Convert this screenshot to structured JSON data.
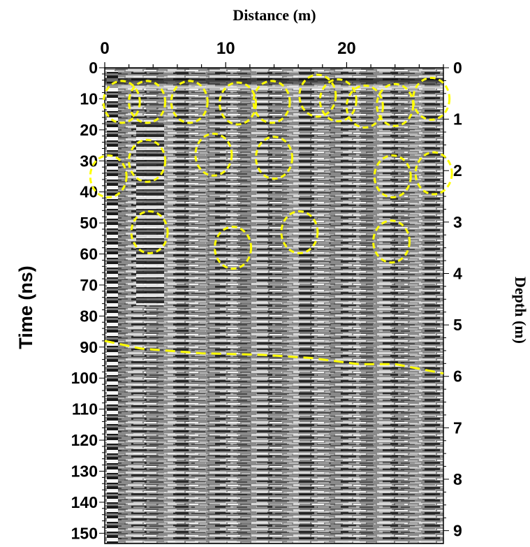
{
  "top_axis": {
    "title": "Distance (m)",
    "ticks": [
      {
        "label": "0",
        "value": 0
      },
      {
        "label": "10",
        "value": 10
      },
      {
        "label": "20",
        "value": 20
      }
    ],
    "range": [
      0,
      28
    ]
  },
  "left_axis": {
    "title": "Time (ns)",
    "range": [
      0,
      150
    ],
    "ticks": [
      "0",
      "10",
      "20",
      "30",
      "40",
      "50",
      "60",
      "70",
      "80",
      "90",
      "100",
      "110",
      "120",
      "130",
      "140",
      "150"
    ]
  },
  "right_axis": {
    "title": "Depth (m)",
    "range": [
      0,
      9.25
    ],
    "ticks": [
      "0",
      "1",
      "2",
      "3",
      "4",
      "5",
      "6",
      "7",
      "8",
      "9"
    ]
  },
  "annotation_color": "#ffff00",
  "hyperbola_markers": [
    {
      "distance_m": 1.4,
      "time_ns": 11
    },
    {
      "distance_m": 3.5,
      "time_ns": 11
    },
    {
      "distance_m": 7.0,
      "time_ns": 11
    },
    {
      "distance_m": 11.0,
      "time_ns": 11.5
    },
    {
      "distance_m": 13.8,
      "time_ns": 11
    },
    {
      "distance_m": 17.6,
      "time_ns": 9
    },
    {
      "distance_m": 19.3,
      "time_ns": 10.5
    },
    {
      "distance_m": 21.5,
      "time_ns": 12.5
    },
    {
      "distance_m": 24.0,
      "time_ns": 12
    },
    {
      "distance_m": 27.0,
      "time_ns": 10
    },
    {
      "distance_m": 3.5,
      "time_ns": 30
    },
    {
      "distance_m": 0.3,
      "time_ns": 35
    },
    {
      "distance_m": 9.0,
      "time_ns": 28
    },
    {
      "distance_m": 14.0,
      "time_ns": 29
    },
    {
      "distance_m": 23.8,
      "time_ns": 35
    },
    {
      "distance_m": 27.2,
      "time_ns": 34
    },
    {
      "distance_m": 3.7,
      "time_ns": 53
    },
    {
      "distance_m": 10.6,
      "time_ns": 58
    },
    {
      "distance_m": 16.1,
      "time_ns": 53
    },
    {
      "distance_m": 23.7,
      "time_ns": 56
    }
  ],
  "interface_line": {
    "style": "dashed",
    "points": [
      [
        0,
        88
      ],
      [
        3,
        90.5
      ],
      [
        8,
        92
      ],
      [
        13,
        92.5
      ],
      [
        17,
        93.5
      ],
      [
        21,
        95.5
      ],
      [
        24,
        95.5
      ],
      [
        28,
        98.5
      ]
    ]
  }
}
